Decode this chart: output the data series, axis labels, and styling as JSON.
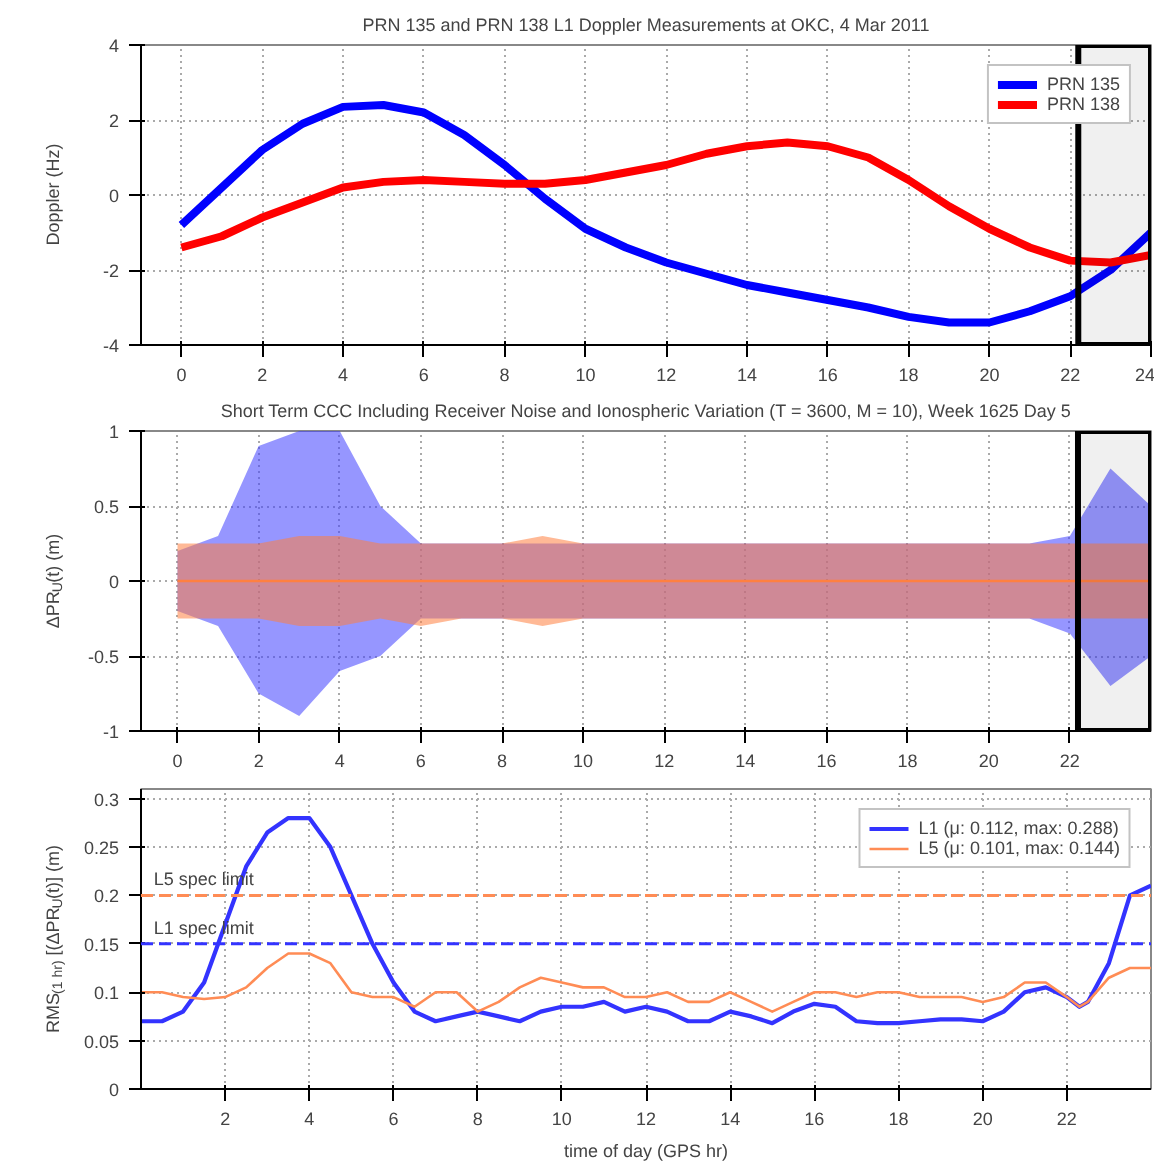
{
  "chart_data": [
    {
      "type": "line",
      "title": "PRN 135 and PRN 138 L1 Doppler Measurements at OKC, 4 Mar 2011",
      "ylabel": "Doppler (Hz)",
      "x": [
        0,
        1,
        2,
        3,
        4,
        5,
        6,
        7,
        8,
        9,
        10,
        11,
        12,
        13,
        14,
        15,
        16,
        17,
        18,
        19,
        20,
        21,
        22,
        23,
        24
      ],
      "series": [
        {
          "name": "PRN 135",
          "color": "#0000ff",
          "values": [
            -0.8,
            0.2,
            1.2,
            1.9,
            2.35,
            2.4,
            2.2,
            1.6,
            0.8,
            -0.1,
            -0.9,
            -1.4,
            -1.8,
            -2.1,
            -2.4,
            -2.6,
            -2.8,
            -3.0,
            -3.25,
            -3.4,
            -3.4,
            -3.1,
            -2.7,
            -2.0,
            -1.0
          ]
        },
        {
          "name": "PRN 138",
          "color": "#ff0000",
          "values": [
            -1.4,
            -1.1,
            -0.6,
            -0.2,
            0.2,
            0.35,
            0.4,
            0.35,
            0.3,
            0.3,
            0.4,
            0.6,
            0.8,
            1.1,
            1.3,
            1.4,
            1.3,
            1.0,
            0.4,
            -0.3,
            -0.9,
            -1.4,
            -1.75,
            -1.8,
            -1.6
          ]
        }
      ],
      "bands": [
        {
          "axis": "x",
          "from": 22.2,
          "to": 24,
          "color": "#000000"
        }
      ],
      "xlim": [
        -1,
        24
      ],
      "ylim": [
        -4,
        4
      ],
      "xticks": [
        0,
        2,
        4,
        6,
        8,
        10,
        12,
        14,
        16,
        18,
        20,
        22,
        24
      ],
      "yticks": [
        -4,
        -2,
        0,
        2,
        4
      ],
      "grid": true,
      "legend": "top right"
    },
    {
      "type": "line",
      "title": "Short Term CCC Including Receiver Noise and Ionospheric Variation (T = 3600, M = 10), Week 1625 Day 5",
      "ylabel": "ΔPR$_{U}$(t) (m)",
      "x": [
        0,
        1,
        2,
        3,
        4,
        5,
        6,
        7,
        8,
        9,
        10,
        11,
        12,
        13,
        14,
        15,
        16,
        17,
        18,
        19,
        20,
        21,
        22,
        23,
        24
      ],
      "series": [
        {
          "color": "#4040ff",
          "values": [
            null,
            null,
            null,
            null,
            null,
            null,
            null,
            null,
            null,
            null,
            null,
            null,
            null,
            null,
            null,
            null,
            null,
            null,
            null,
            null,
            null,
            null,
            null,
            null,
            null
          ],
          "upper": [
            0.2,
            0.3,
            0.9,
            1.0,
            1.0,
            0.5,
            0.25,
            0.25,
            0.25,
            0.25,
            0.25,
            0.25,
            0.25,
            0.25,
            0.25,
            0.25,
            0.25,
            0.25,
            0.25,
            0.25,
            0.25,
            0.25,
            0.3,
            0.75,
            0.5
          ],
          "lower": [
            -0.2,
            -0.3,
            -0.75,
            -0.9,
            -0.6,
            -0.5,
            -0.25,
            -0.25,
            -0.25,
            -0.25,
            -0.25,
            -0.25,
            -0.25,
            -0.25,
            -0.25,
            -0.25,
            -0.25,
            -0.25,
            -0.25,
            -0.25,
            -0.25,
            -0.25,
            -0.35,
            -0.7,
            -0.5
          ]
        },
        {
          "color": "#ff8040",
          "values": [
            0,
            0,
            0,
            0,
            0,
            0,
            0,
            0,
            0,
            0,
            0,
            0,
            0,
            0,
            0,
            0,
            0,
            0,
            0,
            0,
            0,
            0,
            0,
            0,
            0
          ],
          "upper": [
            0.25,
            0.25,
            0.25,
            0.3,
            0.3,
            0.25,
            0.25,
            0.25,
            0.25,
            0.3,
            0.25,
            0.25,
            0.25,
            0.25,
            0.25,
            0.25,
            0.25,
            0.25,
            0.25,
            0.25,
            0.25,
            0.25,
            0.25,
            0.25,
            0.25
          ],
          "lower": [
            -0.25,
            -0.25,
            -0.25,
            -0.3,
            -0.3,
            -0.25,
            -0.3,
            -0.25,
            -0.25,
            -0.3,
            -0.25,
            -0.25,
            -0.25,
            -0.25,
            -0.25,
            -0.25,
            -0.25,
            -0.25,
            -0.25,
            -0.25,
            -0.25,
            -0.25,
            -0.25,
            -0.25,
            -0.25
          ]
        }
      ],
      "bands": [
        {
          "axis": "x",
          "from": 22.2,
          "to": 24,
          "color": "#000000"
        }
      ],
      "xlim": [
        -0.9,
        24
      ],
      "ylim": [
        -1,
        1
      ],
      "xticks": [
        0,
        2,
        4,
        6,
        8,
        10,
        12,
        14,
        16,
        18,
        20,
        22
      ],
      "yticks": [
        -1,
        -0.5,
        0,
        0.5,
        1
      ],
      "grid": true
    },
    {
      "type": "line",
      "xlabel": "time of day (GPS hr)",
      "ylabel": "RMS$_{(1 hr)}$ [(ΔPR$_{U}$(t)] (m)",
      "x": [
        0,
        0.5,
        1,
        1.5,
        2,
        2.5,
        3,
        3.5,
        4,
        4.5,
        5,
        5.5,
        6,
        6.5,
        7,
        7.5,
        8,
        8.5,
        9,
        9.5,
        10,
        10.5,
        11,
        11.5,
        12,
        12.5,
        13,
        13.5,
        14,
        14.5,
        15,
        15.5,
        16,
        16.5,
        17,
        17.5,
        18,
        18.5,
        19,
        19.5,
        20,
        20.5,
        21,
        21.5,
        22,
        22.3,
        22.5,
        23,
        23.5,
        24
      ],
      "series": [
        {
          "name": "L1 (μ: 0.112, max: 0.288)",
          "color": "#3333ff",
          "values": [
            0.07,
            0.07,
            0.08,
            0.11,
            0.17,
            0.23,
            0.265,
            0.28,
            0.28,
            0.25,
            0.2,
            0.15,
            0.11,
            0.08,
            0.07,
            0.075,
            0.08,
            0.075,
            0.07,
            0.08,
            0.085,
            0.085,
            0.09,
            0.08,
            0.085,
            0.08,
            0.07,
            0.07,
            0.08,
            0.075,
            0.068,
            0.08,
            0.088,
            0.085,
            0.07,
            0.068,
            0.068,
            0.07,
            0.072,
            0.072,
            0.07,
            0.08,
            0.1,
            0.105,
            0.095,
            0.085,
            0.09,
            0.13,
            0.2,
            0.21
          ]
        },
        {
          "name": "L5 (μ: 0.101, max: 0.144)",
          "color": "#ff8c55",
          "values": [
            0.1,
            0.1,
            0.095,
            0.093,
            0.095,
            0.105,
            0.125,
            0.14,
            0.14,
            0.13,
            0.1,
            0.095,
            0.095,
            0.085,
            0.1,
            0.1,
            0.08,
            0.09,
            0.105,
            0.115,
            0.11,
            0.105,
            0.105,
            0.095,
            0.095,
            0.1,
            0.09,
            0.09,
            0.1,
            0.09,
            0.08,
            0.09,
            0.1,
            0.1,
            0.095,
            0.1,
            0.1,
            0.095,
            0.095,
            0.095,
            0.09,
            0.095,
            0.11,
            0.11,
            0.095,
            0.085,
            0.09,
            0.115,
            0.125,
            0.125
          ]
        }
      ],
      "ref_lines": [
        {
          "axis": "y",
          "value": 0.2,
          "label": "L5 spec limit",
          "color": "#ff8c55",
          "line_style": "dashed"
        },
        {
          "axis": "y",
          "value": 0.15,
          "label": "L1 spec limit",
          "color": "#3333ff",
          "line_style": "dashed"
        }
      ],
      "xlim": [
        0,
        24
      ],
      "ylim": [
        0,
        0.31
      ],
      "xticks": [
        2,
        4,
        6,
        8,
        10,
        12,
        14,
        16,
        18,
        20,
        22
      ],
      "yticks": [
        0,
        0.05,
        0.1,
        0.15,
        0.2,
        0.25,
        0.3
      ],
      "grid": true,
      "legend": "top right"
    }
  ]
}
